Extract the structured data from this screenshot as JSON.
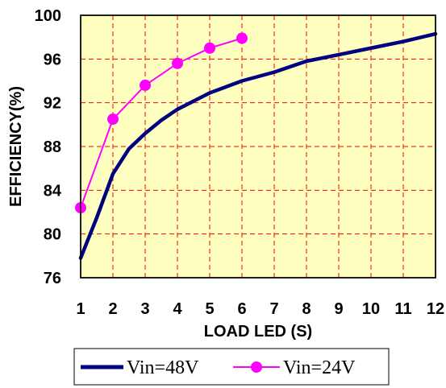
{
  "chart_data": {
    "type": "line",
    "title": "",
    "xlabel": "LOAD LED (S)",
    "ylabel": "EFFICIENCY(%)",
    "xlim": [
      1,
      12
    ],
    "ylim": [
      76,
      100
    ],
    "xticks": [
      1,
      2,
      3,
      4,
      5,
      6,
      7,
      8,
      9,
      10,
      11,
      12
    ],
    "yticks": [
      76,
      80,
      84,
      88,
      92,
      96,
      100
    ],
    "grid": true,
    "legend_position": "bottom",
    "plot_background": "#ffffc0",
    "series": [
      {
        "name": "Vin=48V",
        "color": "#000080",
        "markers": false,
        "x": [
          1,
          1.5,
          2,
          2.5,
          3,
          3.5,
          4,
          5,
          6,
          7,
          8,
          9,
          10,
          11,
          12
        ],
        "y": [
          77.8,
          81.5,
          85.5,
          87.8,
          89.2,
          90.4,
          91.4,
          92.9,
          94.0,
          94.8,
          95.8,
          96.4,
          97.0,
          97.6,
          98.3
        ]
      },
      {
        "name": "Vin=24V",
        "color": "#ff00ff",
        "markers": true,
        "x": [
          1,
          2,
          3,
          4,
          5,
          6
        ],
        "y": [
          82.4,
          90.5,
          93.6,
          95.6,
          97.0,
          97.9
        ]
      }
    ]
  }
}
